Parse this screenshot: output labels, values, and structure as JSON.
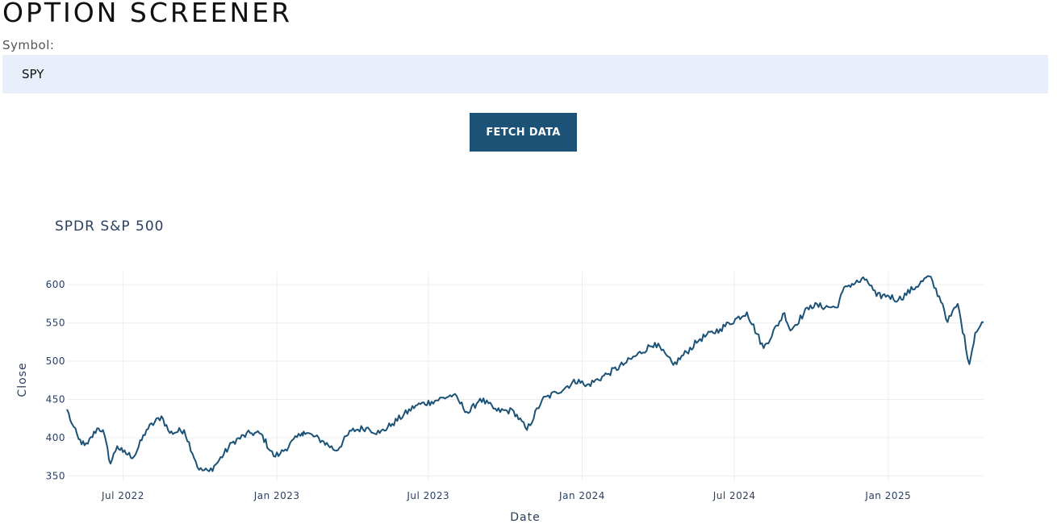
{
  "header": {
    "title": "OPTION SCREENER"
  },
  "form": {
    "symbol_label": "Symbol:",
    "symbol_value": "SPY",
    "fetch_button_label": "FETCH DATA"
  },
  "colors": {
    "accent": "#1b5276",
    "input_bg": "#e8effb",
    "line": "#1b5276",
    "grid": "#ebeef3"
  },
  "chart_data": {
    "type": "line",
    "title": "SPDR S&P 500",
    "xlabel": "Date",
    "ylabel": "Close",
    "xlim": [
      "2022-04-25",
      "2025-04-25"
    ],
    "ylim": [
      343,
      617
    ],
    "grid": true,
    "legend": "none",
    "yticks": [
      350,
      400,
      450,
      500,
      550,
      600
    ],
    "xticks": [
      {
        "date": "2022-07-01",
        "label": "Jul 2022"
      },
      {
        "date": "2023-01-01",
        "label": "Jan 2023"
      },
      {
        "date": "2023-07-01",
        "label": "Jul 2023"
      },
      {
        "date": "2024-01-01",
        "label": "Jan 2024"
      },
      {
        "date": "2024-07-01",
        "label": "Jul 2024"
      },
      {
        "date": "2025-01-01",
        "label": "Jan 2025"
      }
    ],
    "series": [
      {
        "x": [
          "2022-04-25",
          "2022-05-01",
          "2022-05-09",
          "2022-05-16",
          "2022-05-20",
          "2022-05-31",
          "2022-06-07",
          "2022-06-16",
          "2022-06-24",
          "2022-07-01",
          "2022-07-14",
          "2022-07-29",
          "2022-08-16",
          "2022-08-26",
          "2022-09-12",
          "2022-09-30",
          "2022-10-12",
          "2022-10-20",
          "2022-11-10",
          "2022-11-30",
          "2022-12-13",
          "2022-12-28",
          "2023-01-05",
          "2023-01-31",
          "2023-02-02",
          "2023-02-24",
          "2023-03-13",
          "2023-03-31",
          "2023-04-18",
          "2023-05-04",
          "2023-05-19",
          "2023-06-16",
          "2023-07-05",
          "2023-07-31",
          "2023-08-18",
          "2023-09-01",
          "2023-09-21",
          "2023-10-11",
          "2023-10-27",
          "2023-11-14",
          "2023-12-01",
          "2023-12-28",
          "2024-01-05",
          "2024-01-31",
          "2024-02-21",
          "2024-03-28",
          "2024-04-19",
          "2024-05-21",
          "2024-06-14",
          "2024-07-16",
          "2024-08-05",
          "2024-08-30",
          "2024-09-06",
          "2024-09-30",
          "2024-10-31",
          "2024-11-11",
          "2024-12-06",
          "2024-12-18",
          "2024-12-31",
          "2025-01-13",
          "2025-02-19",
          "2025-03-07",
          "2025-03-13",
          "2025-03-25",
          "2025-04-08",
          "2025-04-15",
          "2025-04-25"
        ],
        "y": [
          437,
          418,
          398,
          390,
          392,
          412,
          410,
          366,
          389,
          381,
          375,
          410,
          428,
          406,
          410,
          358,
          356,
          365,
          395,
          406,
          405,
          376,
          379,
          406,
          408,
          396,
          383,
          409,
          413,
          406,
          418,
          442,
          447,
          456,
          432,
          451,
          435,
          435,
          410,
          449,
          459,
          476,
          467,
          483,
          497,
          524,
          495,
          529,
          542,
          564,
          517,
          563,
          540,
          573,
          570,
          598,
          607,
          585,
          586,
          580,
          611,
          575,
          551,
          575,
          496,
          537,
          551
        ]
      }
    ]
  }
}
